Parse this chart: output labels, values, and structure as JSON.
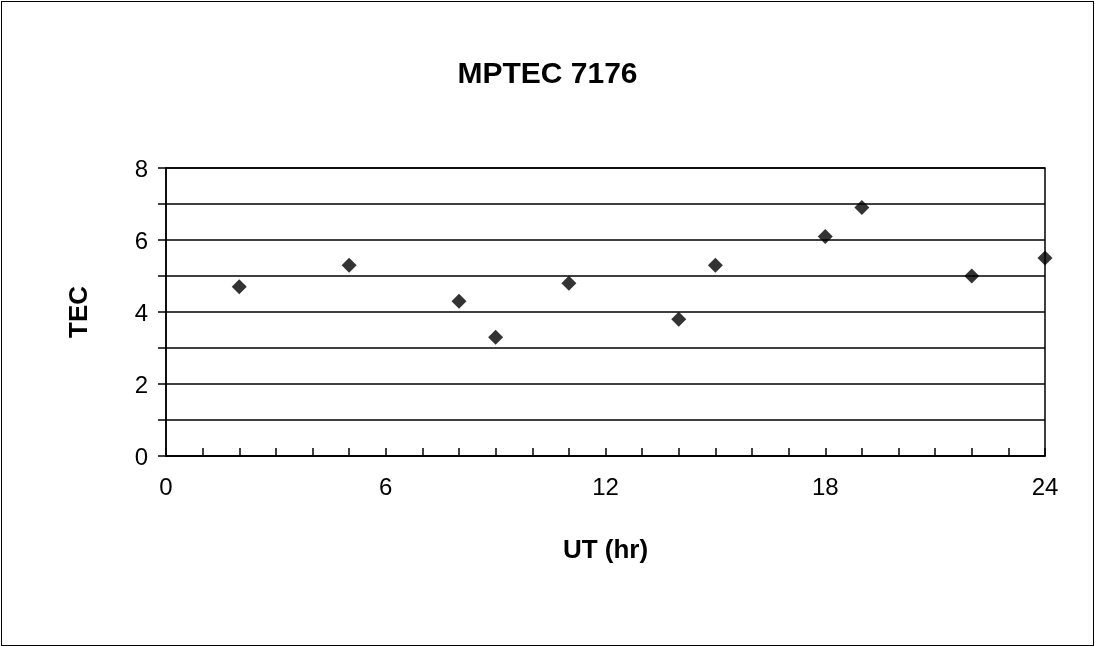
{
  "chart_data": {
    "type": "scatter",
    "title": "MPTEC 7176",
    "xlabel": "UT (hr)",
    "ylabel": "TEC",
    "x": [
      2,
      5,
      8,
      9,
      11,
      14,
      15,
      18,
      19,
      22,
      24
    ],
    "series": [
      {
        "color": "#000000",
        "values": [
          4.7,
          5.3,
          4.3,
          3.3,
          4.8,
          3.8,
          5.3,
          6.1,
          6.9,
          5.0,
          5.5
        ]
      }
    ],
    "xlim": [
      0,
      24
    ],
    "xticks": [
      0,
      {
        "value": 1,
        "label": null
      },
      {
        "value": 2,
        "label": null
      },
      {
        "value": 3,
        "label": null
      },
      {
        "value": 4,
        "label": null
      },
      {
        "value": 5,
        "label": null
      },
      6,
      {
        "value": 7,
        "label": null
      },
      {
        "value": 8,
        "label": null
      },
      {
        "value": 9,
        "label": null
      },
      {
        "value": 10,
        "label": null
      },
      {
        "value": 11,
        "label": null
      },
      12,
      {
        "value": 13,
        "label": null
      },
      {
        "value": 14,
        "label": null
      },
      {
        "value": 15,
        "label": null
      },
      {
        "value": 16,
        "label": null
      },
      {
        "value": 17,
        "label": null
      },
      18,
      {
        "value": 19,
        "label": null
      },
      {
        "value": 20,
        "label": null
      },
      {
        "value": 21,
        "label": null
      },
      {
        "value": 22,
        "label": null
      },
      {
        "value": 23,
        "label": null
      },
      24
    ],
    "ylim": [
      0,
      8
    ],
    "yticks": [
      0,
      {
        "value": 1,
        "label": null
      },
      2,
      {
        "value": 3,
        "label": null
      },
      4,
      {
        "value": 5,
        "label": null
      },
      6,
      {
        "value": 7,
        "label": null
      },
      8
    ],
    "grid": "y",
    "marker": "diamond"
  }
}
